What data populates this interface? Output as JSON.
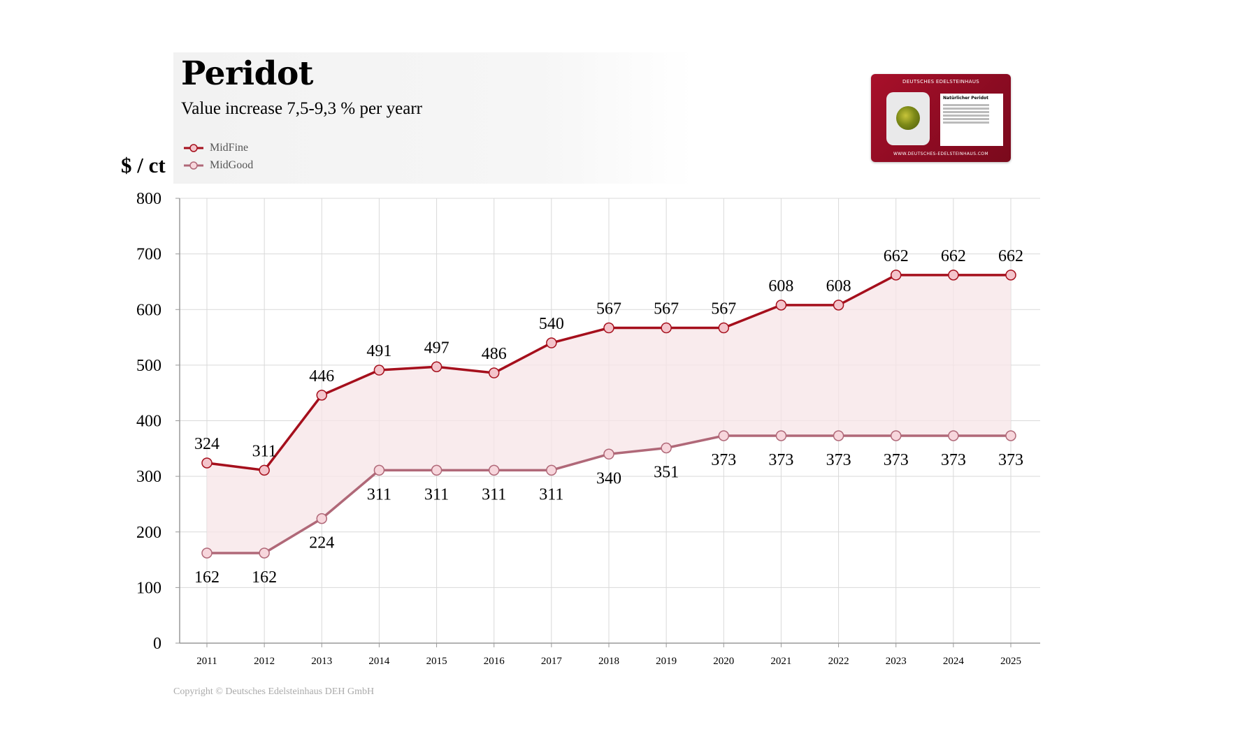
{
  "header": {
    "title": "Peridot",
    "subtitle": "Value increase 7,5-9,3 % per yearr"
  },
  "certificate": {
    "brand": "DEUTSCHES EDELSTEINHAUS",
    "card_title": "Natürlicher Peridot",
    "url": "WWW.DEUTSCHES-EDELSTEINHAUS.COM",
    "icon": "gemstone-certificate-photo"
  },
  "copyright": "Copyright © Deutsches Edelsteinhaus DEH GmbH",
  "colors": {
    "midfine": "#a50f1c",
    "midgood": "#b06878",
    "band_fill": "#f7e4e7",
    "grid": "#d9d9d9"
  },
  "chart_data": {
    "type": "line",
    "title": "Peridot",
    "subtitle": "Value increase 7,5-9,3 % per yearr",
    "ylabel": "$ / ct",
    "xlabel": "",
    "ylim": [
      0,
      800
    ],
    "yticks": [
      0,
      100,
      200,
      300,
      400,
      500,
      600,
      700,
      800
    ],
    "grid": true,
    "legend_position": "top-left",
    "x": [
      "2011",
      "2012",
      "2013",
      "2014",
      "2015",
      "2016",
      "2017",
      "2018",
      "2019",
      "2020",
      "2021",
      "2022",
      "2023",
      "2024",
      "2025"
    ],
    "series": [
      {
        "name": "MidFine",
        "values": [
          324,
          311,
          446,
          491,
          497,
          486,
          540,
          567,
          567,
          567,
          608,
          608,
          662,
          662,
          662
        ]
      },
      {
        "name": "MidGood",
        "values": [
          162,
          162,
          224,
          311,
          311,
          311,
          311,
          340,
          351,
          373,
          373,
          373,
          373,
          373,
          373
        ]
      }
    ],
    "fill_between": true
  }
}
